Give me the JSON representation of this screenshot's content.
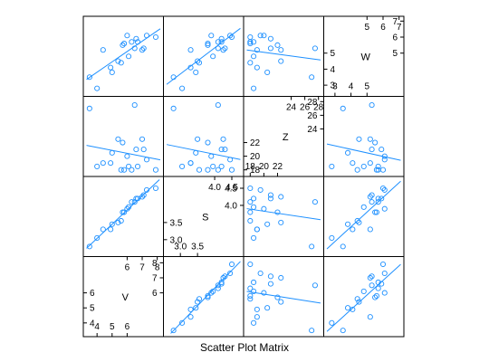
{
  "chart_data": {
    "type": "scatter",
    "subtype": "scatter-plot-matrix",
    "title": "",
    "xlabel": "Scatter Plot Matrix",
    "point_color": "#1e90ff",
    "line_color": "#1e90ff",
    "regression_lines": true,
    "variables": [
      {
        "name": "V",
        "range": [
          3.3,
          8.2
        ],
        "ticks_low": [
          "4",
          "5",
          "6"
        ],
        "ticks_high": [
          "6",
          "7",
          "8"
        ],
        "values": [
          3.5,
          4.0,
          4.4,
          4.9,
          5.0,
          5.4,
          5.6,
          5.7,
          5.8,
          6.0,
          6.1,
          6.3,
          6.5,
          6.6,
          6.7,
          7.0,
          7.1,
          7.3,
          7.9
        ]
      },
      {
        "name": "S",
        "range": [
          2.6,
          4.75
        ],
        "ticks_low": [
          "3.0",
          "3.5"
        ],
        "ticks_high": [
          "4.0",
          "4.5"
        ],
        "values": [
          2.8,
          3.05,
          3.3,
          3.3,
          3.45,
          3.5,
          3.55,
          3.8,
          3.8,
          3.9,
          3.95,
          4.1,
          4.1,
          4.2,
          4.2,
          4.25,
          4.3,
          4.45,
          4.5
        ]
      },
      {
        "name": "Z",
        "range": [
          17.5,
          28.3
        ],
        "ticks_low": [
          "18",
          "20",
          "22"
        ],
        "ticks_high": [
          "24",
          "26",
          "28"
        ],
        "values": [
          27.0,
          18.5,
          19.0,
          19.0,
          20.5,
          22.5,
          18.0,
          22.0,
          18.0,
          20.0,
          18.5,
          18.0,
          27.5,
          21.0,
          18.5,
          22.5,
          21.0,
          19.5,
          18.0
        ]
      },
      {
        "name": "W",
        "range": [
          2.5,
          7.1
        ],
        "ticks_low": [
          "3",
          "4",
          "5"
        ],
        "ticks_high": [
          "5",
          "6",
          "7"
        ],
        "values": [
          3.5,
          2.8,
          5.2,
          4.1,
          3.8,
          4.5,
          4.4,
          5.5,
          5.6,
          6.1,
          4.8,
          5.7,
          5.3,
          5.9,
          5.7,
          5.2,
          5.3,
          6.1,
          6.0
        ]
      }
    ]
  }
}
